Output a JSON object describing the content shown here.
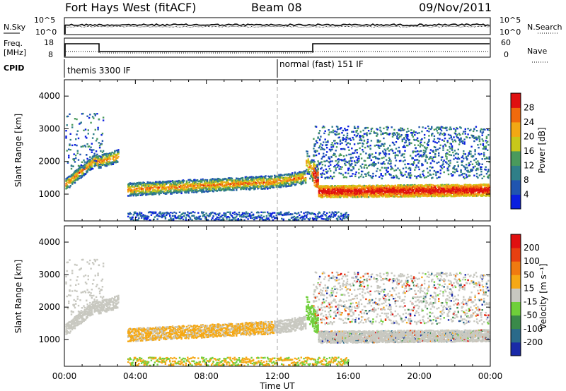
{
  "header": {
    "station": "Fort Hays West (fitACF)",
    "beam": "Beam 08",
    "date": "09/Nov/2011"
  },
  "top_panels": {
    "nsky_label": "N.Sky",
    "nsearch_label": "N.Search",
    "nsky_ticks": [
      "10^5",
      "10^0"
    ],
    "freq_label_1": "Freq.",
    "freq_label_2": "[MHz]",
    "freq_ticks": [
      "18",
      "8"
    ],
    "nave_ticks": [
      "60",
      "0"
    ],
    "nave_label": "Nave",
    "cpid_label": "CPID",
    "cpid_mode_1": "themis 3300 IF",
    "cpid_mode_2": "normal (fast) 151 IF"
  },
  "chart_data": [
    {
      "type": "heatmap",
      "name": "power-panel",
      "xlabel": "Time UT",
      "ylabel": "Slant Range [km]",
      "x_ticks": [
        "00:00",
        "04:00",
        "08:00",
        "12:00",
        "16:00",
        "20:00",
        "00:00"
      ],
      "x_range_hours": [
        0,
        24
      ],
      "y_ticks": [
        1000,
        2000,
        3000,
        4000
      ],
      "y_range_km": [
        180,
        4500
      ],
      "colorbar": {
        "label": "Power [dB]",
        "tick_values": [
          4,
          8,
          12,
          16,
          20,
          24,
          28
        ],
        "colors": [
          "#0b1fe0",
          "#2055b0",
          "#2f7f88",
          "#4a9a5c",
          "#c8c81a",
          "#f2a814",
          "#f06a0c",
          "#e01010"
        ]
      }
    },
    {
      "type": "heatmap",
      "name": "velocity-panel",
      "xlabel": "Time UT",
      "ylabel": "Slant Range [km]",
      "x_ticks": [
        "00:00",
        "04:00",
        "08:00",
        "12:00",
        "16:00",
        "20:00",
        "00:00"
      ],
      "x_range_hours": [
        0,
        24
      ],
      "y_ticks": [
        1000,
        2000,
        3000,
        4000
      ],
      "y_range_km": [
        180,
        4500
      ],
      "colorbar": {
        "label": "Velocity [m s⁻¹]",
        "tick_values": [
          200,
          100,
          50,
          15,
          -15,
          -50,
          -100,
          -200
        ],
        "colors": [
          "#1a2aa8",
          "#2a6a8a",
          "#3a8a4a",
          "#6fcf3a",
          "#c8c8c0",
          "#f5a815",
          "#f07a10",
          "#e84010",
          "#e01010"
        ]
      }
    }
  ],
  "x_axis_title": "Time UT"
}
